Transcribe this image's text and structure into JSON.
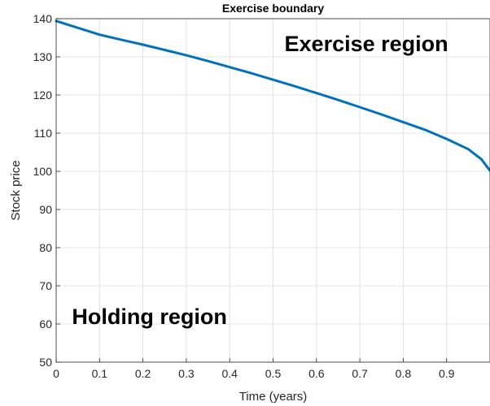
{
  "chart_data": {
    "type": "line",
    "title": "Exercise boundary",
    "xlabel": "Time (years)",
    "ylabel": "Stock price",
    "xlim": [
      0,
      1
    ],
    "ylim": [
      50,
      140
    ],
    "xticks": [
      0,
      0.1,
      0.2,
      0.3,
      0.4,
      0.5,
      0.6,
      0.7,
      0.8,
      0.9
    ],
    "xtick_labels": [
      "0",
      "0.1",
      "0.2",
      "0.3",
      "0.4",
      "0.5",
      "0.6",
      "0.7",
      "0.8",
      "0.9"
    ],
    "yticks": [
      50,
      60,
      70,
      80,
      90,
      100,
      110,
      120,
      130,
      140
    ],
    "ytick_labels": [
      "50",
      "60",
      "70",
      "80",
      "90",
      "100",
      "110",
      "120",
      "130",
      "140"
    ],
    "grid": true,
    "series": [
      {
        "color": "#0072BD",
        "x": [
          0,
          0.05,
          0.1,
          0.15,
          0.2,
          0.25,
          0.3,
          0.35,
          0.4,
          0.45,
          0.5,
          0.55,
          0.6,
          0.65,
          0.7,
          0.75,
          0.8,
          0.85,
          0.9,
          0.95,
          0.98,
          1.0
        ],
        "y": [
          139.4,
          137.6,
          135.8,
          134.5,
          133.2,
          131.8,
          130.4,
          128.9,
          127.3,
          125.7,
          124.0,
          122.3,
          120.5,
          118.7,
          116.8,
          114.9,
          112.9,
          110.9,
          108.5,
          105.8,
          103.2,
          100.2
        ]
      }
    ],
    "annotations": [
      {
        "text": "Exercise region",
        "x": 0.715,
        "y": 131.5
      },
      {
        "text": "Holding region",
        "x": 0.215,
        "y": 60
      }
    ]
  }
}
